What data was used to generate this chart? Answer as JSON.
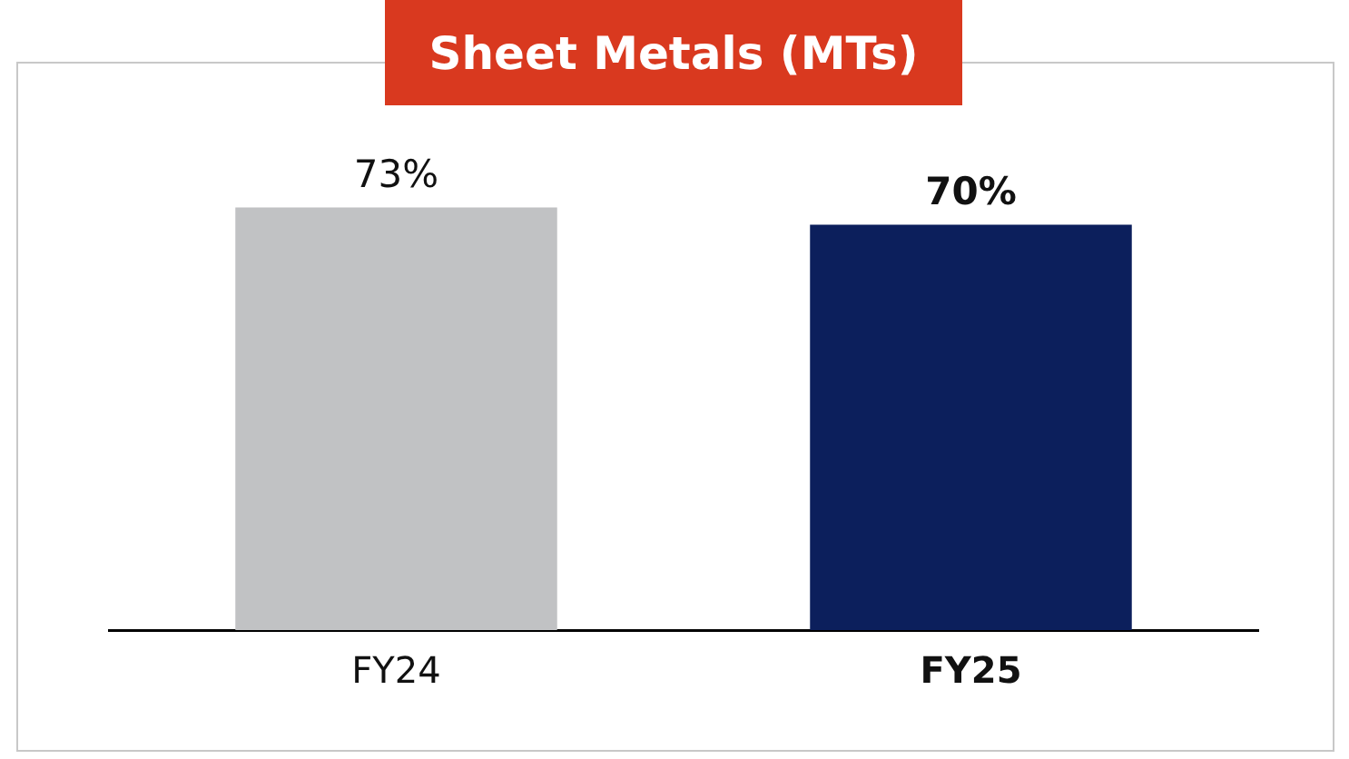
{
  "chart_data": {
    "type": "bar",
    "title": "Sheet Metals (MTs)",
    "categories": [
      "FY24",
      "FY25"
    ],
    "values": [
      73,
      70
    ],
    "colors": [
      "#c1c2c4",
      "#0c1f5c"
    ],
    "value_labels": [
      "73%",
      "70%"
    ],
    "grid": false,
    "legend": false
  }
}
